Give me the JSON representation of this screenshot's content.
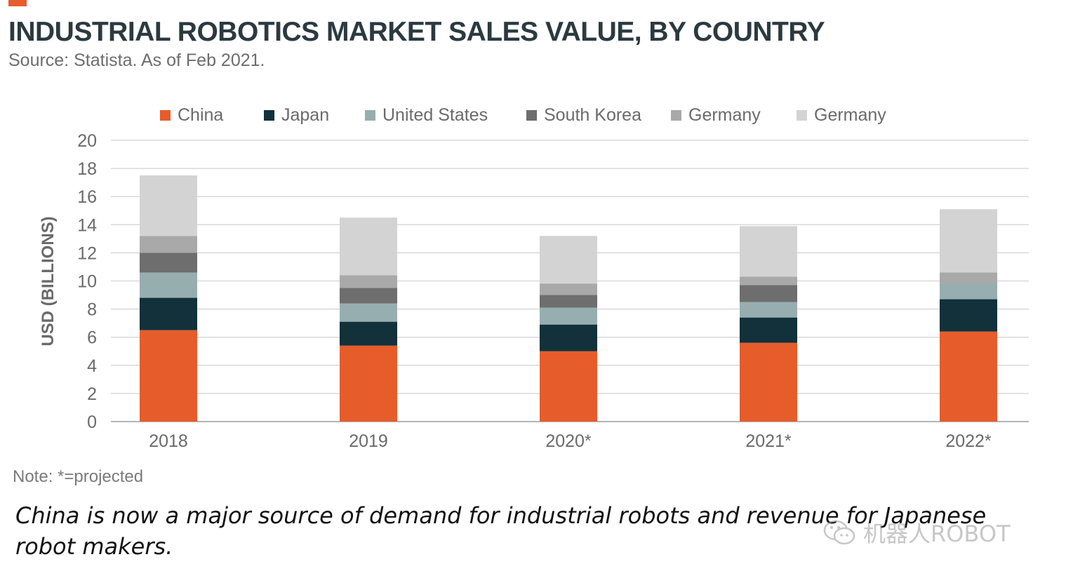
{
  "title": "INDUSTRIAL ROBOTICS MARKET SALES VALUE, BY COUNTRY",
  "subtitle": "Source: Statista. As of Feb 2021.",
  "note": "Note: *=projected",
  "caption": "China is now a major source of demand for industrial robots and revenue for Japanese robot makers.",
  "watermark": "机器人ROBOT",
  "colors": {
    "accent": "#e65c2b",
    "china": "#e65c2b",
    "japan": "#12313a",
    "united_states": "#97aeb0",
    "south_korea": "#6e6e6e",
    "germany_a": "#a9a9a9",
    "germany_b": "#d3d3d3",
    "grid": "#d9d9d9",
    "tick": "#6a6a6a"
  },
  "chart_data": {
    "type": "bar",
    "stacked": true,
    "categories": [
      "2018",
      "2019",
      "2020*",
      "2021*",
      "2022*"
    ],
    "series": [
      {
        "name": "China",
        "color": "#e65c2b",
        "values": [
          6.5,
          5.4,
          5.0,
          5.6,
          6.4
        ]
      },
      {
        "name": "Japan",
        "color": "#12313a",
        "values": [
          2.3,
          1.7,
          1.9,
          1.8,
          2.3
        ]
      },
      {
        "name": "United States",
        "color": "#97aeb0",
        "values": [
          1.8,
          1.3,
          1.2,
          1.1,
          1.1
        ]
      },
      {
        "name": "South Korea",
        "color": "#6e6e6e",
        "values": [
          1.4,
          1.1,
          0.9,
          1.2,
          0.0
        ]
      },
      {
        "name": "Germany",
        "color": "#a9a9a9",
        "values": [
          1.2,
          0.9,
          0.8,
          0.6,
          0.8
        ]
      },
      {
        "name": "Germany",
        "color": "#d3d3d3",
        "values": [
          4.3,
          4.1,
          3.4,
          3.6,
          4.5
        ]
      }
    ],
    "ylabel": "USD (BILLIONS)",
    "xlabel": "",
    "ylim": [
      0,
      20
    ],
    "yticks": [
      0,
      2,
      4,
      6,
      8,
      10,
      12,
      14,
      16,
      18,
      20
    ],
    "grid": true,
    "legend_position": "top"
  }
}
